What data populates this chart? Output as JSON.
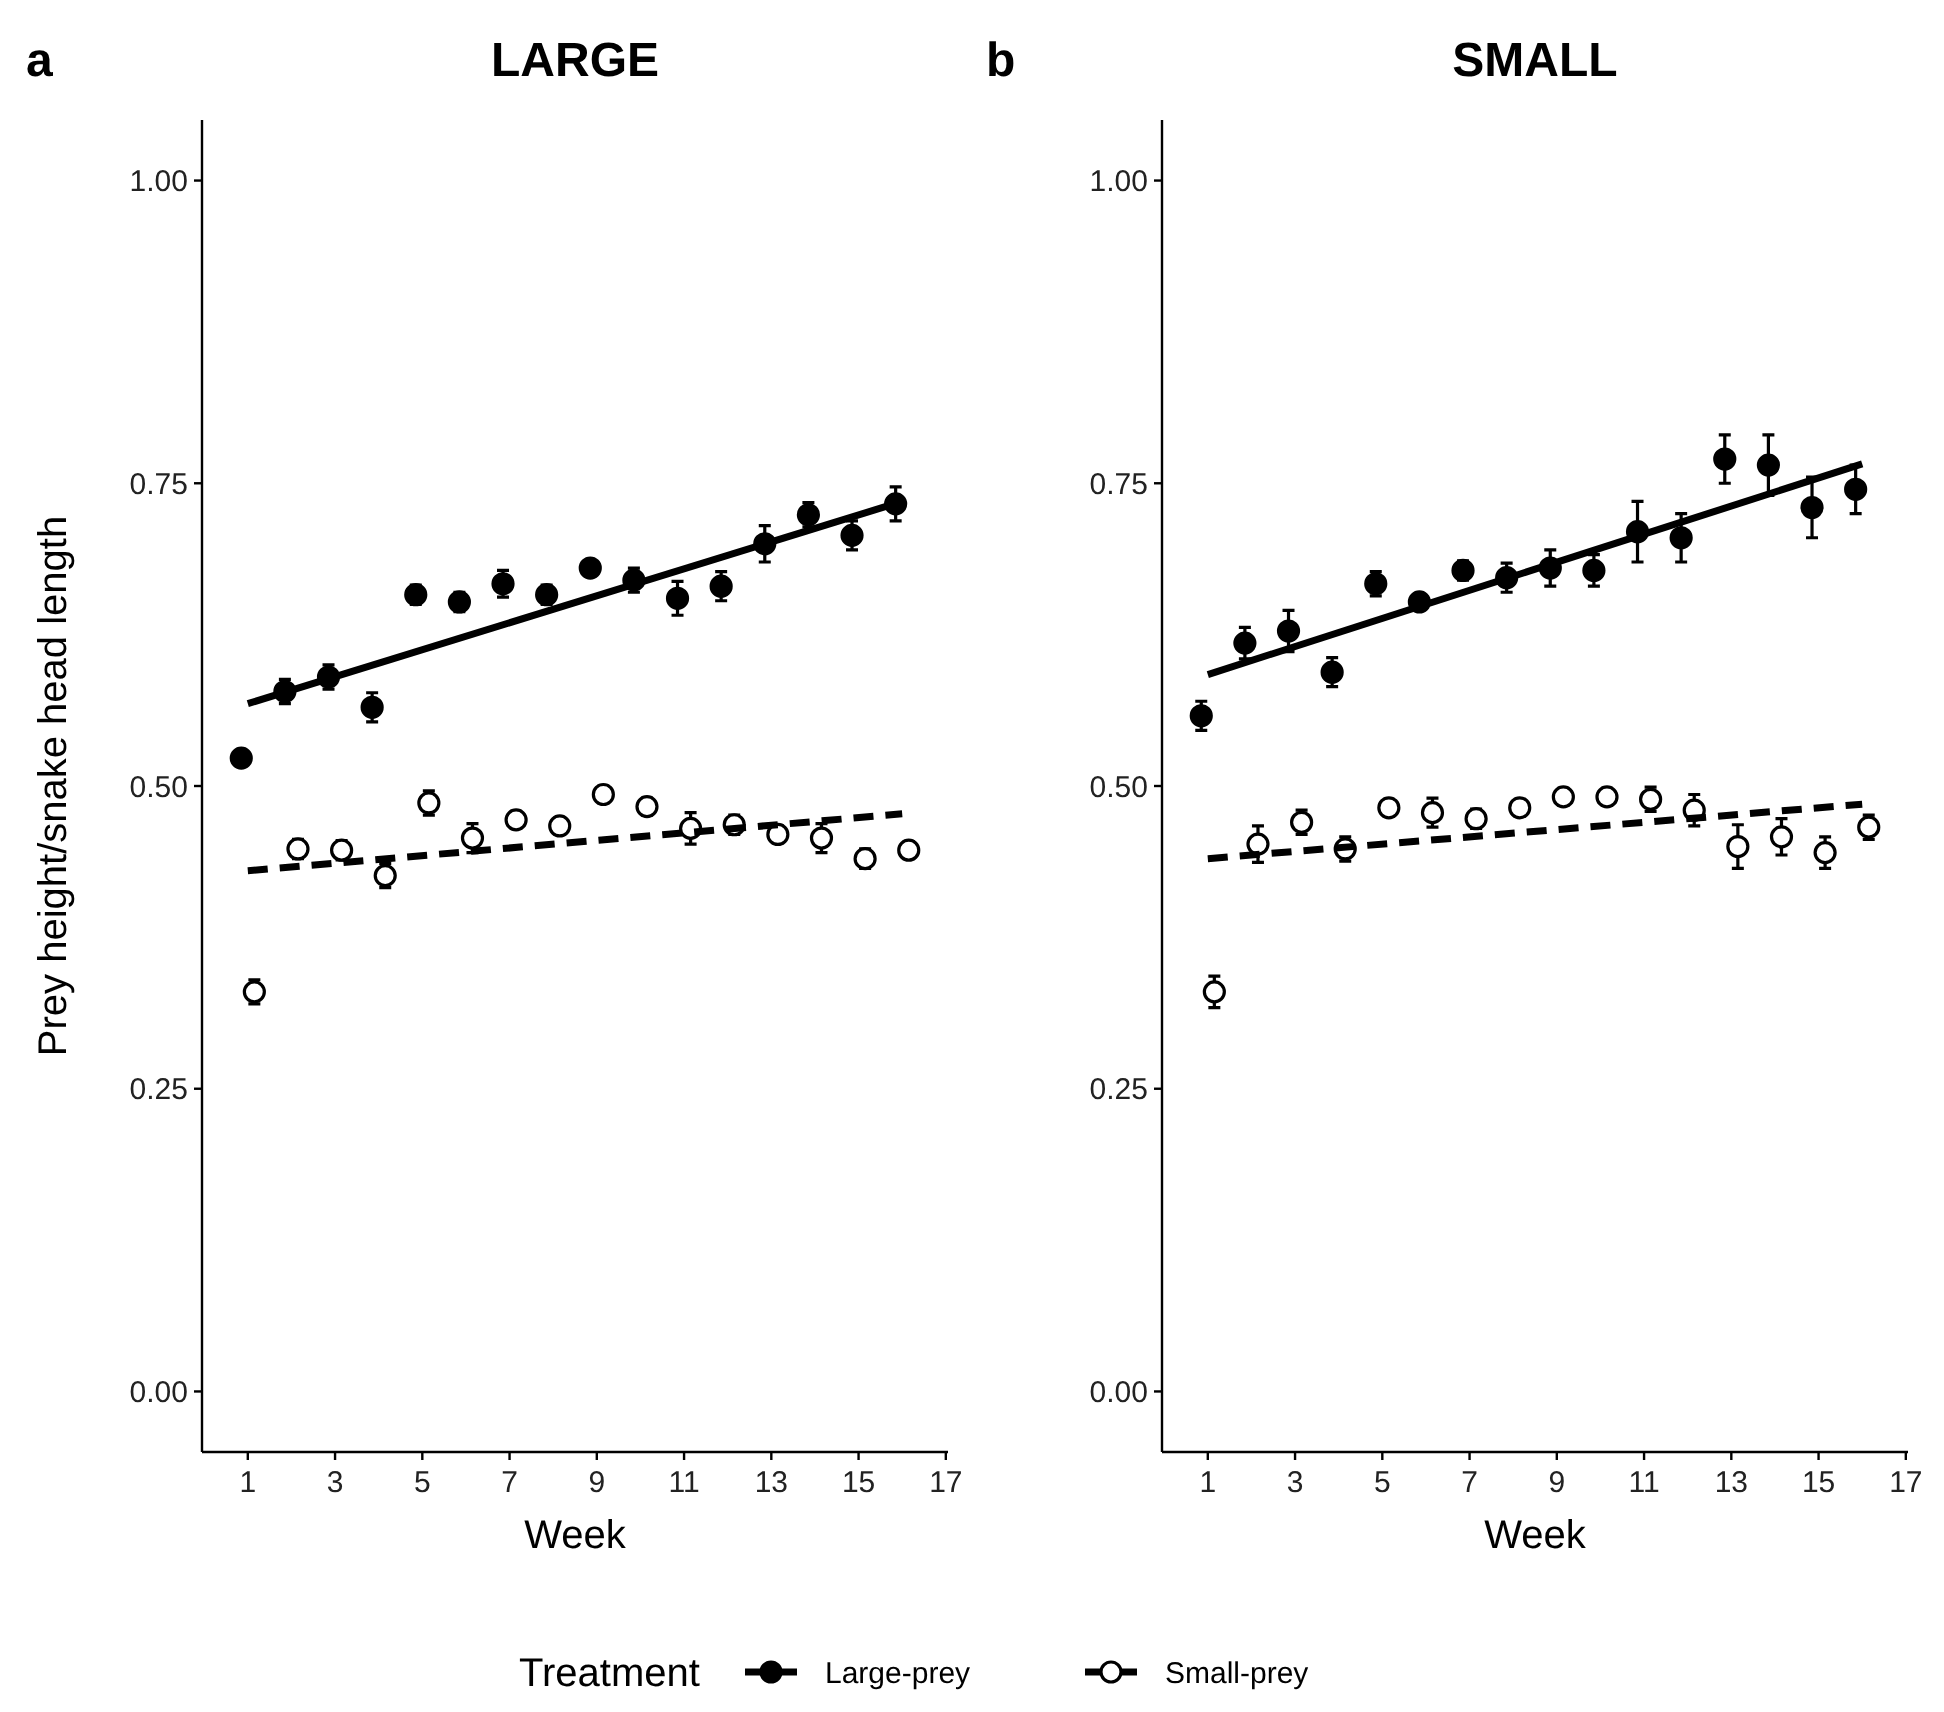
{
  "chart_data": [
    {
      "type": "scatter",
      "title": "LARGE",
      "annotations": [
        "a"
      ],
      "xlabel": "Week",
      "ylabel": "Prey height/snake head length",
      "legend_title": "Treatment",
      "legend": "bottom",
      "xlim": [
        -0.05,
        17.05
      ],
      "xticks": [
        1,
        3,
        5,
        7,
        9,
        11,
        13,
        15,
        17
      ],
      "ylim": [
        -0.05,
        1.05
      ],
      "yticks": [
        {
          "value": 0,
          "label": "0.00"
        },
        {
          "value": 0.25,
          "label": "0.25"
        },
        {
          "value": 0.5,
          "label": "0.50"
        },
        {
          "value": 0.75,
          "label": "0.75"
        },
        {
          "value": 1,
          "label": "1.00"
        }
      ],
      "grid": false,
      "series": [
        {
          "name": "Large-prey",
          "color": "#000000",
          "marker": "circle",
          "x": [
            0.85,
            1.85,
            2.85,
            3.85,
            4.85,
            5.85,
            6.85,
            7.85,
            8.85,
            9.85,
            10.85,
            11.85,
            12.85,
            13.85,
            14.85,
            15.85
          ],
          "values": [
            0.523,
            0.578,
            0.59,
            0.565,
            0.658,
            0.652,
            0.667,
            0.658,
            0.68,
            0.67,
            0.655,
            0.665,
            0.7,
            0.724,
            0.707,
            0.733
          ],
          "errors": [
            null,
            0.01,
            0.01,
            0.012,
            0.008,
            0.008,
            0.011,
            0.008,
            null,
            0.01,
            0.014,
            0.012,
            0.015,
            0.01,
            0.012,
            0.014
          ]
        },
        {
          "name": "Small-prey",
          "color": "#000000",
          "marker": "circle",
          "x": [
            1.15,
            2.15,
            3.15,
            4.15,
            5.15,
            6.15,
            7.15,
            8.15,
            9.15,
            10.15,
            11.15,
            12.15,
            13.15,
            14.15,
            15.15,
            16.15
          ],
          "values": [
            0.33,
            0.448,
            0.447,
            0.426,
            0.486,
            0.457,
            0.472,
            0.467,
            0.493,
            0.483,
            0.465,
            0.468,
            0.46,
            0.457,
            0.44,
            0.447
          ],
          "errors": [
            0.01,
            0.008,
            0.008,
            0.01,
            0.01,
            0.012,
            0.007,
            0.007,
            0.007,
            0.007,
            0.013,
            0.008,
            0.007,
            0.012,
            0.008,
            0.007
          ]
        },
        {
          "type": "line",
          "color": "#000000",
          "line_style": "solid",
          "marker": "none",
          "x": [
            1,
            16
          ],
          "values": [
            0.568,
            0.735
          ]
        },
        {
          "type": "line",
          "color": "#000000",
          "line_style": "dashed",
          "marker": "none",
          "x": [
            1,
            16
          ],
          "values": [
            0.43,
            0.477
          ]
        }
      ]
    },
    {
      "type": "scatter",
      "title": "SMALL",
      "annotations": [
        "b"
      ],
      "xlabel": "Week",
      "legend": false,
      "xlim": [
        -0.05,
        17.05
      ],
      "xticks": [
        1,
        3,
        5,
        7,
        9,
        11,
        13,
        15,
        17
      ],
      "ylim": [
        -0.05,
        1.05
      ],
      "yticks": [
        {
          "value": 0,
          "label": "0.00"
        },
        {
          "value": 0.25,
          "label": "0.25"
        },
        {
          "value": 0.5,
          "label": "0.50"
        },
        {
          "value": 0.75,
          "label": "0.75"
        },
        {
          "value": 1,
          "label": "1.00"
        }
      ],
      "grid": false,
      "series": [
        {
          "color": "#000000",
          "marker": "circle",
          "x": [
            0.85,
            1.85,
            2.85,
            3.85,
            4.85,
            5.85,
            6.85,
            7.85,
            8.85,
            9.85,
            10.85,
            11.85,
            12.85,
            13.85,
            14.85,
            15.85
          ],
          "values": [
            0.558,
            0.618,
            0.628,
            0.594,
            0.667,
            0.652,
            0.678,
            0.672,
            0.68,
            0.678,
            0.71,
            0.705,
            0.77,
            0.765,
            0.73,
            0.745
          ],
          "errors": [
            0.012,
            0.013,
            0.017,
            0.012,
            0.01,
            null,
            0.008,
            0.012,
            0.015,
            0.013,
            0.025,
            0.02,
            0.02,
            0.025,
            0.025,
            0.02
          ]
        },
        {
          "color": "#000000",
          "marker": "circle",
          "x": [
            1.15,
            2.15,
            3.15,
            4.15,
            5.15,
            6.15,
            7.15,
            8.15,
            9.15,
            10.15,
            11.15,
            12.15,
            13.15,
            14.15,
            15.15,
            16.15
          ],
          "values": [
            0.33,
            0.452,
            0.47,
            0.448,
            0.482,
            0.478,
            0.473,
            0.482,
            0.491,
            0.491,
            0.489,
            0.48,
            0.45,
            0.458,
            0.445,
            0.466
          ],
          "errors": [
            0.013,
            0.015,
            0.01,
            0.01,
            0.007,
            0.012,
            0.008,
            0.007,
            0.007,
            0.007,
            0.01,
            0.013,
            0.018,
            0.015,
            0.013,
            0.01
          ]
        },
        {
          "type": "line",
          "color": "#000000",
          "line_style": "solid",
          "marker": "none",
          "x": [
            1,
            16
          ],
          "values": [
            0.592,
            0.766
          ]
        },
        {
          "type": "line",
          "color": "#000000",
          "line_style": "dashed",
          "marker": "none",
          "x": [
            1,
            16
          ],
          "values": [
            0.44,
            0.485
          ]
        }
      ]
    }
  ]
}
